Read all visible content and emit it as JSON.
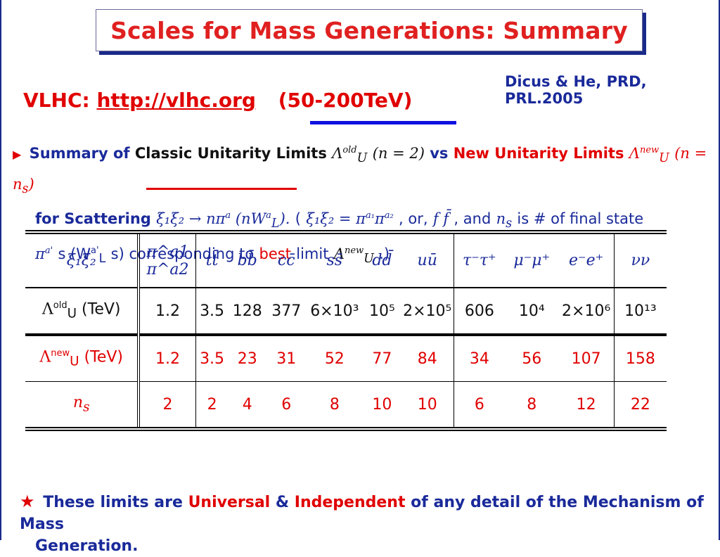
{
  "title": "Scales for Mass Generations: Summary",
  "citation": "Dicus & He, PRD, PRL.2005",
  "vlhc": {
    "label": "VLHC:",
    "link": "http://vlhc.org",
    "range": "(50-200TeV)"
  },
  "summary": {
    "bullet": "▶",
    "p1": "Summary of",
    "p2": "Classic Unitarity Limits",
    "p3": "Λ",
    "p3sub": "U",
    "p3sup": "old",
    "p4": "(n = 2)",
    "p5": "vs",
    "p6": "New Unitarity Limits",
    "p7": "Λ",
    "p7sub": "U",
    "p7sup": "new",
    "p8": "(n = n",
    "p8sub": "s",
    "p8end": ")",
    "l2a": "for Scattering",
    "l2b": "ξ₁ξ₂ → nπ",
    "l2bsup": "a",
    "l2c": "(nW",
    "l2csup": "a",
    "l2csub": "L",
    "l2d": ").",
    "l2e": "(",
    "l2f": "ξ₁ξ₂ = π",
    "l2fsup1": "a₁",
    "l2f2": "π",
    "l2fsup2": "a₂",
    "l2g": ", or,",
    "l2h": "f f̄",
    "l2i": ", and",
    "l2j": "n",
    "l2jsub": "s",
    "l2k": "is # of final state",
    "l3a": "π",
    "l3asup": "a'",
    "l3b": "s (W",
    "l3bsup": "a'",
    "l3bsub": "L",
    "l3c": "s) corresponding to",
    "l3d": "best",
    "l3e": "limit",
    "l3f": "Λ",
    "l3fsub": "U",
    "l3fsup": "new",
    "l3g": ".)"
  },
  "table": {
    "header_label": "ξ₁ξ₂",
    "columns": [
      "π^a1 π^a2",
      "tt̄",
      "bb̄",
      "cc̄",
      "ss̄",
      "dd̄",
      "uū",
      "τ⁻τ⁺",
      "μ⁻μ⁺",
      "e⁻e⁺",
      "νν"
    ],
    "row_old_label": "Λ",
    "row_old_sup": "old",
    "row_old_sub": "U",
    "row_old_unit": "(TeV)",
    "row_old": [
      "1.2",
      "3.5",
      "128",
      "377",
      "6×10³",
      "10⁵",
      "2×10⁵",
      "606",
      "10⁴",
      "2×10⁶",
      "10¹³"
    ],
    "row_new_label": "Λ",
    "row_new_sup": "new",
    "row_new_sub": "U",
    "row_new_unit": "(TeV)",
    "row_new": [
      "1.2",
      "3.5",
      "23",
      "31",
      "52",
      "77",
      "84",
      "34",
      "56",
      "107",
      "158"
    ],
    "row_ns_label": "n",
    "row_ns_sub": "s",
    "row_ns": [
      "2",
      "2",
      "4",
      "6",
      "8",
      "10",
      "10",
      "6",
      "8",
      "12",
      "22"
    ]
  },
  "footer": {
    "star": "★",
    "a": "These limits are",
    "b": "Universal",
    "c": "&",
    "d": "Independent",
    "e": "of any detail of the Mechanism of Mass",
    "f": "Generation."
  },
  "colors": {
    "title_red": "#e02020",
    "accent_blue": "#1a2a9a",
    "value_red": "#e00000"
  }
}
